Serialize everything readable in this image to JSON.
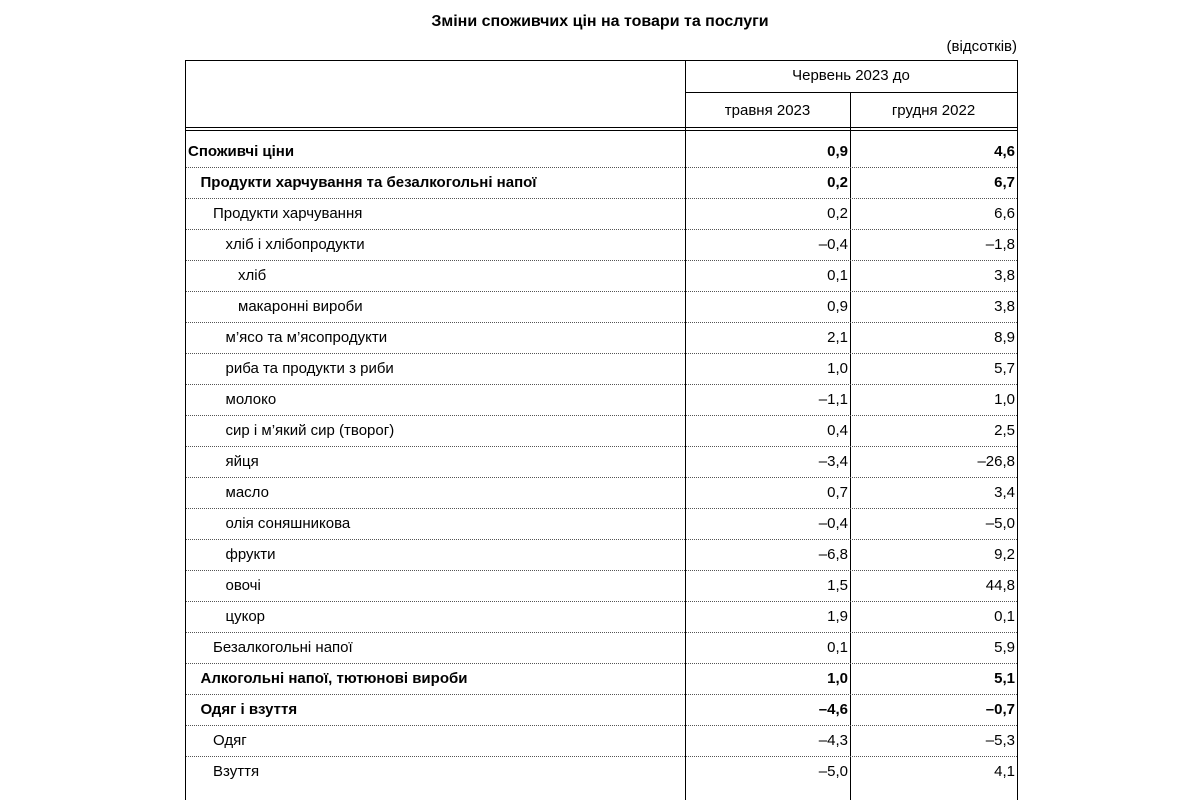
{
  "header": {
    "title": "Зміни споживчих цін на товари та послуги",
    "unit": "(відсотків)"
  },
  "table": {
    "header_group": "Червень 2023 до",
    "columns": [
      "травня 2023",
      "грудня 2022"
    ],
    "rows": [
      [
        "Споживчі ціни",
        "0,9",
        "4,6"
      ],
      [
        "Продукти харчування та безалкогольні напої",
        "0,2",
        "6,7"
      ],
      [
        "Продукти харчування",
        "0,2",
        "6,6"
      ],
      [
        "хліб і хлібопродукти",
        "–0,4",
        "–1,8"
      ],
      [
        "хліб",
        "0,1",
        "3,8"
      ],
      [
        "макаронні вироби",
        "0,9",
        "3,8"
      ],
      [
        "м’ясо та м’ясопродукти",
        "2,1",
        "8,9"
      ],
      [
        "риба та продукти з риби",
        "1,0",
        "5,7"
      ],
      [
        "молоко",
        "–1,1",
        "1,0"
      ],
      [
        "сир і м’який сир (творог)",
        "0,4",
        "2,5"
      ],
      [
        "яйця",
        "–3,4",
        "–26,8"
      ],
      [
        "масло",
        "0,7",
        "3,4"
      ],
      [
        "олія соняшникова",
        "–0,4",
        "–5,0"
      ],
      [
        "фрукти",
        "–6,8",
        "9,2"
      ],
      [
        "овочі",
        "1,5",
        "44,8"
      ],
      [
        "цукор",
        "1,9",
        "0,1"
      ],
      [
        "Безалкогольні напої",
        "0,1",
        "5,9"
      ],
      [
        "Алкогольні напої, тютюнові вироби",
        "1,0",
        "5,1"
      ],
      [
        "Одяг і взуття",
        "–4,6",
        "–0,7"
      ],
      [
        "Одяг",
        "–4,3",
        "–5,3"
      ],
      [
        "Взуття",
        "–5,0",
        "4,1"
      ]
    ]
  }
}
